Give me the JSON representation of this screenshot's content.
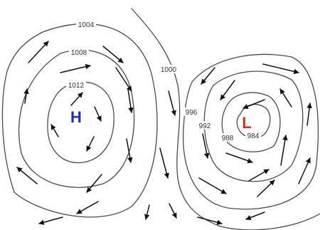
{
  "colors": {
    "high_center": "#1f2fb3",
    "low_center": "#d2331f",
    "isobar": "#4a4a4a",
    "wind_arrow": "#111111"
  },
  "centers": {
    "high": "H",
    "low": "L"
  },
  "isobar_labels": {
    "h1004": "1004",
    "h1008": "1008",
    "h1012": "1012",
    "c1000": "1000",
    "l996": "996",
    "l992": "992",
    "l988": "988",
    "l984": "984"
  },
  "wind_arrow_icon": "arrow-icon"
}
